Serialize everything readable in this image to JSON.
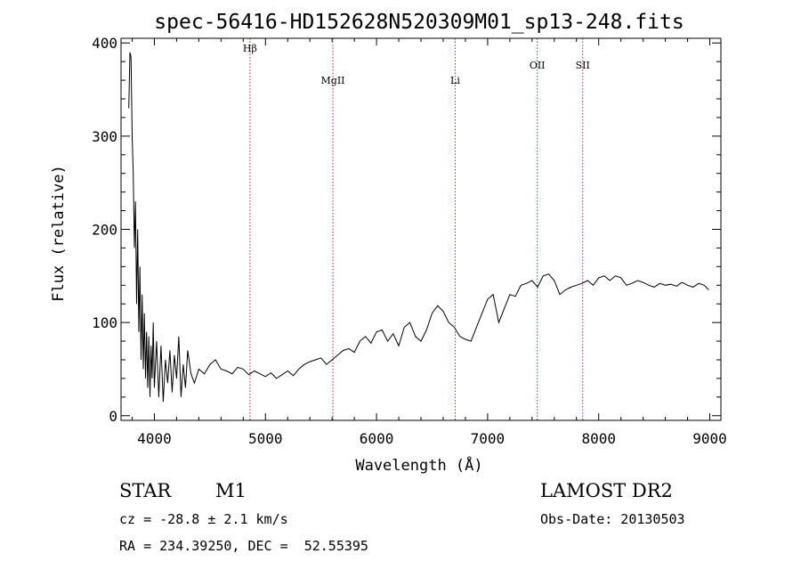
{
  "chart_data": {
    "type": "line",
    "title": "spec-56416-HD152628N520309M01_sp13-248.fits",
    "xlabel": "Wavelength (Å)",
    "ylabel": "Flux (relative)",
    "xlim": [
      3700,
      9100
    ],
    "ylim": [
      -5,
      405
    ],
    "xticks": [
      4000,
      5000,
      6000,
      7000,
      8000,
      9000
    ],
    "yticks": [
      0,
      100,
      200,
      300,
      400
    ],
    "grid": false,
    "spectral_lines": [
      {
        "label": "Hβ",
        "x": 4861
      },
      {
        "label": "MgII",
        "x": 5607
      },
      {
        "label": "Li",
        "x": 6708
      },
      {
        "label": "OII",
        "x": 7447
      },
      {
        "label": "SII",
        "x": 7856
      }
    ],
    "series": [
      {
        "x": [
          3770,
          3780,
          3790,
          3800,
          3810,
          3820,
          3830,
          3840,
          3850,
          3860,
          3870,
          3880,
          3890,
          3900,
          3910,
          3920,
          3930,
          3940,
          3950,
          3960,
          3970,
          3980,
          3990,
          4000,
          4020,
          4040,
          4060,
          4080,
          4100,
          4120,
          4140,
          4160,
          4180,
          4200,
          4220,
          4240,
          4260,
          4280,
          4300,
          4330,
          4360,
          4400,
          4450,
          4500,
          4550,
          4600,
          4650,
          4700,
          4750,
          4800,
          4850,
          4900,
          4950,
          5000,
          5050,
          5100,
          5150,
          5200,
          5250,
          5300,
          5350,
          5400,
          5450,
          5500,
          5550,
          5600,
          5650,
          5700,
          5750,
          5800,
          5850,
          5900,
          5950,
          6000,
          6050,
          6100,
          6150,
          6200,
          6250,
          6300,
          6350,
          6400,
          6450,
          6500,
          6550,
          6600,
          6650,
          6700,
          6750,
          6800,
          6850,
          6900,
          6950,
          7000,
          7050,
          7100,
          7150,
          7200,
          7250,
          7300,
          7350,
          7400,
          7450,
          7500,
          7550,
          7600,
          7650,
          7700,
          7750,
          7800,
          7850,
          7900,
          7950,
          8000,
          8050,
          8100,
          8150,
          8200,
          8250,
          8300,
          8350,
          8400,
          8450,
          8500,
          8550,
          8600,
          8650,
          8700,
          8750,
          8800,
          8850,
          8900,
          8950,
          8990
        ],
        "values": [
          330,
          390,
          385,
          300,
          260,
          180,
          230,
          120,
          200,
          90,
          160,
          60,
          130,
          50,
          110,
          40,
          90,
          30,
          85,
          20,
          75,
          40,
          100,
          30,
          80,
          20,
          75,
          15,
          60,
          35,
          70,
          25,
          65,
          40,
          85,
          20,
          55,
          30,
          70,
          45,
          35,
          50,
          45,
          55,
          60,
          50,
          48,
          45,
          52,
          50,
          44,
          48,
          45,
          42,
          46,
          40,
          44,
          48,
          43,
          50,
          55,
          58,
          60,
          62,
          55,
          60,
          65,
          70,
          72,
          68,
          80,
          85,
          78,
          90,
          92,
          80,
          88,
          75,
          95,
          100,
          85,
          80,
          92,
          110,
          118,
          112,
          100,
          95,
          85,
          82,
          80,
          95,
          110,
          125,
          130,
          100,
          115,
          130,
          128,
          140,
          142,
          145,
          138,
          150,
          152,
          145,
          130,
          135,
          138,
          140,
          142,
          145,
          140,
          148,
          150,
          145,
          150,
          148,
          140,
          142,
          145,
          143,
          140,
          138,
          142,
          140,
          141,
          139,
          143,
          140,
          138,
          142,
          140,
          135
        ]
      }
    ]
  },
  "info": {
    "object_class": "STAR",
    "subclass": "M1",
    "survey": "LAMOST DR2",
    "redshift": "cz = -28.8 ± 2.1 km/s",
    "obs_date": "Obs-Date: 20130503",
    "coords": "RA = 234.39250, DEC =  52.55395"
  }
}
